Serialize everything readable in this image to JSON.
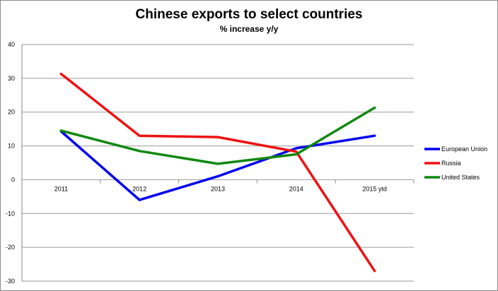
{
  "chart_data": {
    "type": "line",
    "title": "Chinese exports to select countries",
    "subtitle": "% increase y/y",
    "xlabel": "",
    "ylabel": "",
    "categories": [
      "2011",
      "2012",
      "2013",
      "2014",
      "2015 ytd"
    ],
    "ylim": [
      -30,
      40
    ],
    "yticks": [
      40,
      30,
      20,
      10,
      0,
      -10,
      -20,
      -30
    ],
    "grid": true,
    "legend_position": "right",
    "series": [
      {
        "name": "European Union",
        "color": "#0000ee",
        "values": [
          14.3,
          -6.0,
          1.0,
          9.3,
          13.0
        ]
      },
      {
        "name": "Russia",
        "color": "#ee1111",
        "values": [
          31.3,
          13.0,
          12.6,
          8.3,
          -27.0
        ]
      },
      {
        "name": "United States",
        "color": "#118811",
        "values": [
          14.5,
          8.5,
          4.7,
          7.5,
          21.3
        ]
      }
    ]
  }
}
